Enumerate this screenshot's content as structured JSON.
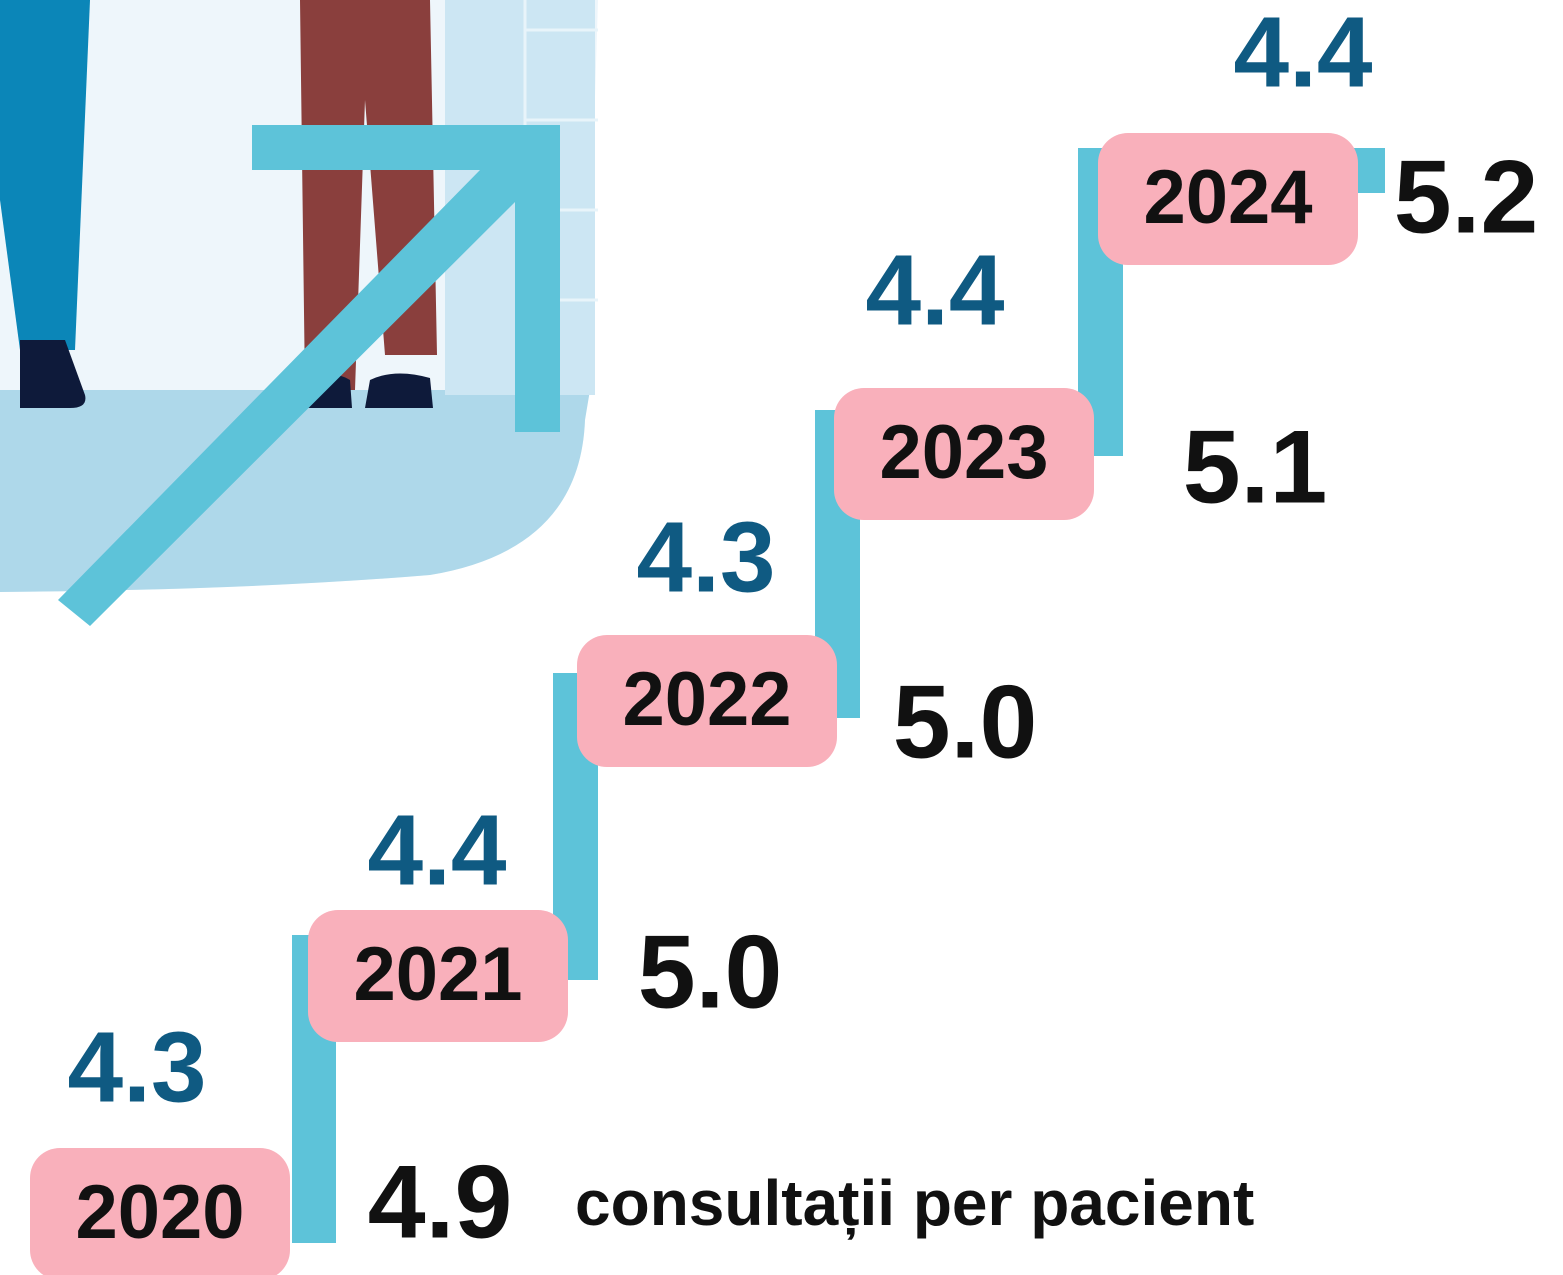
{
  "steps": [
    {
      "year": "2020",
      "top_value": "4.3",
      "side_value": "4.9"
    },
    {
      "year": "2021",
      "top_value": "4.4",
      "side_value": "5.0"
    },
    {
      "year": "2022",
      "top_value": "4.3",
      "side_value": "5.0"
    },
    {
      "year": "2023",
      "top_value": "4.4",
      "side_value": "5.1"
    },
    {
      "year": "2024",
      "top_value": "4.4",
      "side_value": "5.2"
    }
  ],
  "unit_label": "consultații per pacient"
}
